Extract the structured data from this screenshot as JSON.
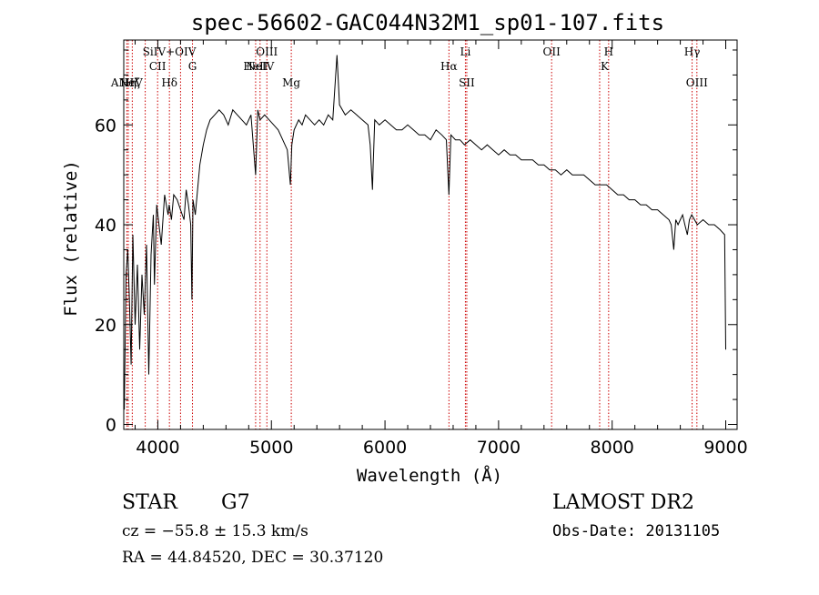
{
  "chart_data": {
    "type": "line",
    "title": "spec-56602-GAC044N32M1_sp01-107.fits",
    "xlabel": "Wavelength (Å)",
    "ylabel": "Flux (relative)",
    "xlim": [
      3700,
      9100
    ],
    "ylim": [
      -1,
      77
    ],
    "xticks": [
      4000,
      5000,
      6000,
      7000,
      8000,
      9000
    ],
    "yticks": [
      0,
      20,
      40,
      60
    ],
    "grid": false,
    "line_color": "#000000",
    "marker_color": "#cc0000",
    "series": [
      {
        "x": [
          3705,
          3720,
          3735,
          3750,
          3765,
          3780,
          3800,
          3820,
          3840,
          3860,
          3880,
          3900,
          3920,
          3940,
          3960,
          3970,
          3990,
          4010,
          4030,
          4060,
          4090,
          4100,
          4120,
          4140,
          4170,
          4200,
          4230,
          4250,
          4270,
          4290,
          4300,
          4310,
          4330,
          4350,
          4370,
          4400,
          4430,
          4460,
          4500,
          4540,
          4580,
          4620,
          4660,
          4700,
          4740,
          4780,
          4820,
          4861,
          4880,
          4900,
          4940,
          4980,
          5020,
          5060,
          5100,
          5140,
          5167,
          5180,
          5200,
          5240,
          5270,
          5300,
          5340,
          5380,
          5420,
          5460,
          5500,
          5540,
          5577,
          5600,
          5650,
          5700,
          5750,
          5800,
          5850,
          5870,
          5890,
          5896,
          5910,
          5950,
          6000,
          6050,
          6100,
          6150,
          6200,
          6250,
          6300,
          6350,
          6400,
          6450,
          6500,
          6540,
          6563,
          6580,
          6620,
          6660,
          6700,
          6750,
          6800,
          6850,
          6900,
          6950,
          7000,
          7050,
          7100,
          7150,
          7200,
          7250,
          7300,
          7350,
          7400,
          7450,
          7500,
          7550,
          7600,
          7650,
          7700,
          7750,
          7800,
          7850,
          7900,
          7950,
          8000,
          8050,
          8100,
          8150,
          8200,
          8250,
          8300,
          8350,
          8400,
          8450,
          8500,
          8520,
          8542,
          8560,
          8580,
          8600,
          8620,
          8640,
          8662,
          8680,
          8700,
          8750,
          8800,
          8850,
          8900,
          8950,
          8990,
          9000
        ],
        "y": [
          3,
          30,
          35,
          25,
          12,
          38,
          20,
          32,
          15,
          30,
          22,
          36,
          10,
          34,
          42,
          28,
          44,
          40,
          36,
          46,
          42,
          44,
          41,
          46,
          45,
          43,
          41,
          47,
          44,
          40,
          25,
          45,
          42,
          47,
          52,
          56,
          59,
          61,
          62,
          63,
          62,
          60,
          63,
          62,
          61,
          60,
          62,
          50,
          63,
          61,
          62,
          61,
          60,
          59,
          57,
          55,
          48,
          56,
          59,
          61,
          60,
          62,
          61,
          60,
          61,
          60,
          62,
          61,
          74,
          64,
          62,
          63,
          62,
          61,
          60,
          56,
          47,
          52,
          61,
          60,
          61,
          60,
          59,
          59,
          60,
          59,
          58,
          58,
          57,
          59,
          58,
          57,
          46,
          58,
          57,
          57,
          56,
          57,
          56,
          55,
          56,
          55,
          54,
          55,
          54,
          54,
          53,
          53,
          53,
          52,
          52,
          51,
          51,
          50,
          51,
          50,
          50,
          50,
          49,
          48,
          48,
          48,
          47,
          46,
          46,
          45,
          45,
          44,
          44,
          43,
          43,
          42,
          41,
          40,
          35,
          41,
          40,
          41,
          42,
          40,
          38,
          41,
          42,
          40,
          41,
          40,
          40,
          39,
          38,
          15
        ]
      }
    ],
    "spectral_lines": [
      {
        "label": "ANeV",
        "x": 3727,
        "row": 4
      },
      {
        "label": "Hη",
        "x": 3740,
        "row": 4
      },
      {
        "label": "Hζ",
        "x": 3775,
        "row": 4
      },
      {
        "label": "SiIV+OIV",
        "x": 4101,
        "row": 1
      },
      {
        "label": "CII",
        "x": 3998,
        "row": 2
      },
      {
        "label": "Hδ",
        "x": 4102,
        "row": 3
      },
      {
        "label": "G",
        "x": 4305,
        "row": 2
      },
      {
        "label": "OIII",
        "x": 4960,
        "row": 1
      },
      {
        "label": "HeII",
        "x": 4861,
        "row": 2
      },
      {
        "label": "NeIV",
        "x": 4900,
        "row": 2
      },
      {
        "label": "Mg",
        "x": 5175,
        "row": 3
      },
      {
        "label": "Li",
        "x": 6708,
        "row": 1
      },
      {
        "label": "Hα",
        "x": 6563,
        "row": 2
      },
      {
        "label": "SII",
        "x": 6720,
        "row": 3
      },
      {
        "label": "OII",
        "x": 7467,
        "row": 1
      },
      {
        "label": "H",
        "x": 7969,
        "row": 1
      },
      {
        "label": "K",
        "x": 7934,
        "row": 2
      },
      {
        "label": "Hγ",
        "x": 8704,
        "row": 1
      },
      {
        "label": "OIII",
        "x": 8746,
        "row": 3
      }
    ],
    "marker_x": [
      3727,
      3740,
      3775,
      3889,
      3998,
      4102,
      4200,
      4305,
      4861,
      4900,
      4960,
      5175,
      6563,
      6708,
      6720,
      7467,
      7890,
      7969,
      8704,
      8746
    ]
  },
  "info": {
    "class": "STAR",
    "subclass": "G7",
    "survey": "LAMOST DR2",
    "cz": "cz = −55.8 ± 15.3 km/s",
    "obs_date": "Obs-Date: 20131105",
    "radec": "RA =  44.84520, DEC =  30.37120"
  }
}
